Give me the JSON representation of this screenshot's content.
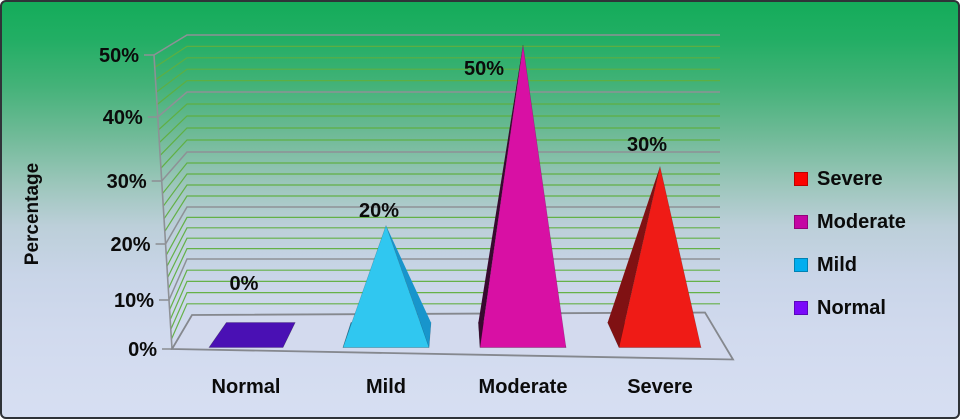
{
  "chart_data": {
    "type": "bar",
    "subtype": "3d-pyramid",
    "title": "",
    "xlabel": "",
    "ylabel": "Percentage",
    "categories": [
      "Normal",
      "Mild",
      "Moderate",
      "Severe"
    ],
    "values": [
      0,
      20,
      50,
      30
    ],
    "points": [
      {
        "label": "Normal",
        "value": 0,
        "display": "0%",
        "front": "#4a10b4",
        "side": "#35087e",
        "legend": "#7a0afa"
      },
      {
        "label": "Mild",
        "value": 20,
        "display": "20%",
        "front": "#30c7f0",
        "side": "#1895cc",
        "legend": "#00aeef"
      },
      {
        "label": "Moderate",
        "value": 50,
        "display": "50%",
        "front": "#d810a4",
        "side": "#38092f",
        "legend": "#c405a3"
      },
      {
        "label": "Severe",
        "value": 30,
        "display": "30%",
        "front": "#ef1b16",
        "side": "#801113",
        "legend": "#fb0300"
      }
    ],
    "ylim": [
      0,
      50
    ],
    "yticks": [
      "0%",
      "10%",
      "20%",
      "30%",
      "40%",
      "50%"
    ],
    "ytick_values": [
      0,
      10,
      20,
      30,
      40,
      50
    ],
    "minor_grid_step_percent": 2,
    "grid": true,
    "legend_position": "right",
    "legend_order_top_to_bottom": [
      "Severe",
      "Moderate",
      "Mild",
      "Normal"
    ]
  },
  "style_colors": {
    "background_top": "#14ac5a",
    "background_bottom": "#d7dff2",
    "major_grid": "#8e9196",
    "minor_grid": "#5faf3f",
    "floor_fill": "#d3daee",
    "floor_stroke": "#85888e",
    "axis": "#8e9196",
    "text": "#0b0b0b",
    "frame_border": "#2f3338"
  }
}
